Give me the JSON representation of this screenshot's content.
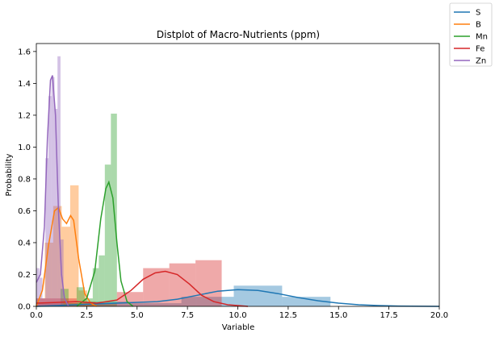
{
  "chart_data": {
    "type": "histogram_kde",
    "title": "Distplot of Macro-Nutrients (ppm)",
    "xlabel": "Variable",
    "ylabel": "Probability",
    "xlim": [
      0,
      20
    ],
    "ylim": [
      0,
      1.65
    ],
    "xticks": [
      "0.0",
      "2.5",
      "5.0",
      "7.5",
      "10.0",
      "12.5",
      "15.0",
      "17.5",
      "20.0"
    ],
    "yticks": [
      "0.0",
      "0.2",
      "0.4",
      "0.6",
      "0.8",
      "1.0",
      "1.2",
      "1.4",
      "1.6"
    ],
    "grid": false,
    "legend_position": "top-right outside",
    "series": [
      {
        "name": "S",
        "color": "#1f77b4",
        "hist": [
          {
            "x0": 0.0,
            "x1": 2.3,
            "h": 0.02
          },
          {
            "x0": 2.3,
            "x1": 4.6,
            "h": 0.03
          },
          {
            "x0": 4.6,
            "x1": 7.2,
            "h": 0.02
          },
          {
            "x0": 7.2,
            "x1": 9.8,
            "h": 0.06
          },
          {
            "x0": 9.8,
            "x1": 12.2,
            "h": 0.13
          },
          {
            "x0": 12.2,
            "x1": 14.6,
            "h": 0.06
          }
        ],
        "kde": [
          [
            0,
            0.0
          ],
          [
            2,
            0.01
          ],
          [
            4,
            0.02
          ],
          [
            6,
            0.03
          ],
          [
            7,
            0.045
          ],
          [
            8,
            0.07
          ],
          [
            9,
            0.095
          ],
          [
            10,
            0.105
          ],
          [
            11,
            0.1
          ],
          [
            12,
            0.08
          ],
          [
            13,
            0.055
          ],
          [
            14,
            0.035
          ],
          [
            15,
            0.02
          ],
          [
            16,
            0.01
          ],
          [
            17,
            0.005
          ],
          [
            18,
            0.002
          ],
          [
            20,
            0.0
          ]
        ]
      },
      {
        "name": "B",
        "color": "#ff7f0e",
        "hist": [
          {
            "x0": 0.0,
            "x1": 0.42,
            "h": 0.05
          },
          {
            "x0": 0.42,
            "x1": 0.84,
            "h": 0.4
          },
          {
            "x0": 0.84,
            "x1": 1.26,
            "h": 0.63
          },
          {
            "x0": 1.26,
            "x1": 1.68,
            "h": 0.5
          },
          {
            "x0": 1.68,
            "x1": 2.1,
            "h": 0.76
          },
          {
            "x0": 2.1,
            "x1": 2.52,
            "h": 0.1
          },
          {
            "x0": 2.52,
            "x1": 2.94,
            "h": 0.03
          }
        ],
        "kde": [
          [
            0,
            0.0
          ],
          [
            0.3,
            0.1
          ],
          [
            0.6,
            0.38
          ],
          [
            0.9,
            0.6
          ],
          [
            1.1,
            0.62
          ],
          [
            1.3,
            0.55
          ],
          [
            1.5,
            0.52
          ],
          [
            1.7,
            0.57
          ],
          [
            1.85,
            0.54
          ],
          [
            2.1,
            0.3
          ],
          [
            2.4,
            0.08
          ],
          [
            2.7,
            0.02
          ],
          [
            3.0,
            0.0
          ]
        ]
      },
      {
        "name": "Mn",
        "color": "#2ca02c",
        "hist": [
          {
            "x0": 1.2,
            "x1": 1.6,
            "h": 0.11
          },
          {
            "x0": 1.6,
            "x1": 2.0,
            "h": 0.02
          },
          {
            "x0": 2.0,
            "x1": 2.4,
            "h": 0.12
          },
          {
            "x0": 2.4,
            "x1": 2.8,
            "h": 0.05
          },
          {
            "x0": 2.8,
            "x1": 3.1,
            "h": 0.24
          },
          {
            "x0": 3.1,
            "x1": 3.4,
            "h": 0.32
          },
          {
            "x0": 3.4,
            "x1": 3.7,
            "h": 0.89
          },
          {
            "x0": 3.7,
            "x1": 4.0,
            "h": 1.21
          }
        ],
        "kde": [
          [
            2.0,
            0.0
          ],
          [
            2.5,
            0.05
          ],
          [
            2.9,
            0.22
          ],
          [
            3.2,
            0.55
          ],
          [
            3.45,
            0.74
          ],
          [
            3.6,
            0.78
          ],
          [
            3.8,
            0.68
          ],
          [
            4.0,
            0.4
          ],
          [
            4.2,
            0.16
          ],
          [
            4.5,
            0.03
          ],
          [
            4.8,
            0.0
          ]
        ]
      },
      {
        "name": "Fe",
        "color": "#d62728",
        "hist": [
          {
            "x0": 0.0,
            "x1": 2.0,
            "h": 0.05
          },
          {
            "x0": 2.0,
            "x1": 4.0,
            "h": 0.02
          },
          {
            "x0": 4.0,
            "x1": 5.3,
            "h": 0.09
          },
          {
            "x0": 5.3,
            "x1": 6.6,
            "h": 0.24
          },
          {
            "x0": 6.6,
            "x1": 7.9,
            "h": 0.27
          },
          {
            "x0": 7.9,
            "x1": 9.2,
            "h": 0.29
          }
        ],
        "kde": [
          [
            0,
            0.02
          ],
          [
            1,
            0.025
          ],
          [
            2,
            0.03
          ],
          [
            3,
            0.02
          ],
          [
            4,
            0.04
          ],
          [
            4.7,
            0.1
          ],
          [
            5.3,
            0.17
          ],
          [
            5.9,
            0.21
          ],
          [
            6.4,
            0.22
          ],
          [
            7.0,
            0.2
          ],
          [
            7.6,
            0.14
          ],
          [
            8.2,
            0.07
          ],
          [
            8.8,
            0.03
          ],
          [
            9.5,
            0.01
          ],
          [
            10.5,
            0.0
          ]
        ]
      },
      {
        "name": "Zn",
        "color": "#9467bd",
        "hist": [
          {
            "x0": 0.0,
            "x1": 0.15,
            "h": 0.24
          },
          {
            "x0": 0.15,
            "x1": 0.3,
            "h": 0.18
          },
          {
            "x0": 0.3,
            "x1": 0.45,
            "h": 0.05
          },
          {
            "x0": 0.45,
            "x1": 0.6,
            "h": 0.93
          },
          {
            "x0": 0.6,
            "x1": 0.75,
            "h": 1.32
          },
          {
            "x0": 0.75,
            "x1": 0.9,
            "h": 1.44
          },
          {
            "x0": 0.9,
            "x1": 1.05,
            "h": 1.24
          },
          {
            "x0": 1.05,
            "x1": 1.2,
            "h": 1.57
          },
          {
            "x0": 1.2,
            "x1": 1.35,
            "h": 0.42
          }
        ],
        "kde": [
          [
            0,
            0.15
          ],
          [
            0.2,
            0.2
          ],
          [
            0.4,
            0.5
          ],
          [
            0.55,
            1.05
          ],
          [
            0.7,
            1.42
          ],
          [
            0.8,
            1.45
          ],
          [
            0.95,
            1.2
          ],
          [
            1.1,
            0.6
          ],
          [
            1.25,
            0.2
          ],
          [
            1.4,
            0.05
          ],
          [
            1.6,
            0.0
          ]
        ]
      }
    ]
  }
}
